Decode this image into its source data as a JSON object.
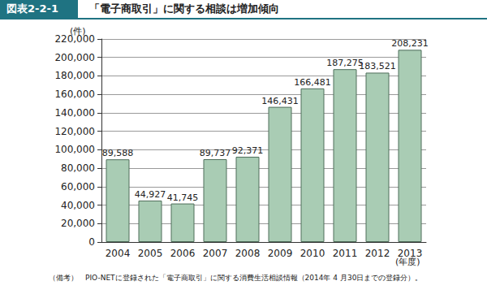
{
  "chart_data": {
    "type": "bar",
    "figure_label": "図表2-2-1",
    "title": "「電子商取引」に関する相談は増加傾向",
    "ylabel": "(件)",
    "xlabel": "(年度)",
    "note": "（備考）　PIO-NETに登録された「電子商取引」に関する消費生活相談情報（2014年 4 月30日までの登録分）。",
    "categories": [
      "2004",
      "2005",
      "2006",
      "2007",
      "2008",
      "2009",
      "2010",
      "2011",
      "2012",
      "2013"
    ],
    "values": [
      89588,
      44927,
      41745,
      89737,
      92371,
      146431,
      166481,
      187275,
      183521,
      208231
    ],
    "value_labels": [
      "89,588",
      "44,927",
      "41,745",
      "89,737",
      "92,371",
      "146,431",
      "166,481",
      "187,275",
      "183,521",
      "208,231"
    ],
    "data_labels": true,
    "color": "#a9ccb4",
    "ylim": [
      0,
      220000
    ],
    "yticks": [
      0,
      {
        "value": 20000,
        "label": "20,000"
      },
      {
        "value": 40000,
        "label": "40,000"
      },
      {
        "value": 60000,
        "label": "60,000"
      },
      {
        "value": 80000,
        "label": "80,000"
      },
      {
        "value": 100000,
        "label": "100,000"
      },
      {
        "value": 120000,
        "label": "120,000"
      },
      {
        "value": 140000,
        "label": "140,000"
      },
      {
        "value": 160000,
        "label": "160,000"
      },
      {
        "value": 180000,
        "label": "180,000"
      },
      {
        "value": 200000,
        "label": "200,000"
      },
      {
        "value": 220000,
        "label": "220,000"
      }
    ],
    "grid": true
  }
}
